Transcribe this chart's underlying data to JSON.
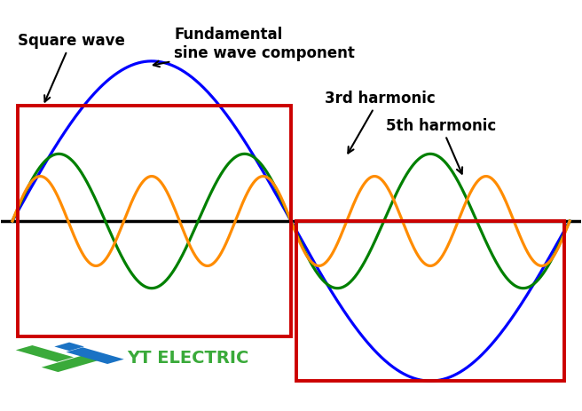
{
  "bg_color": "#ffffff",
  "wave_color_blue": "#0000ff",
  "wave_color_green": "#008000",
  "wave_color_orange": "#ff8c00",
  "rect_color": "#cc0000",
  "axis_color": "#000000",
  "text_color": "#000000",
  "label_square": "Square wave",
  "label_fundamental": "Fundamental\nsine wave component",
  "label_3rd": "3rd harmonic",
  "label_5th": "5th harmonic",
  "label_yt": "YT ELECTRIC",
  "yt_green": "#3aaa3a",
  "yt_blue": "#1a72c4",
  "fig_width": 6.56,
  "fig_height": 4.64,
  "dpi": 100,
  "A1": 1.0,
  "A3": 0.42,
  "A5": 0.28,
  "sq_high": 0.72,
  "sq_low": -0.72,
  "ylim_min": -1.18,
  "ylim_max": 1.38,
  "xlim_min": -0.02,
  "xlim_max": 1.02
}
